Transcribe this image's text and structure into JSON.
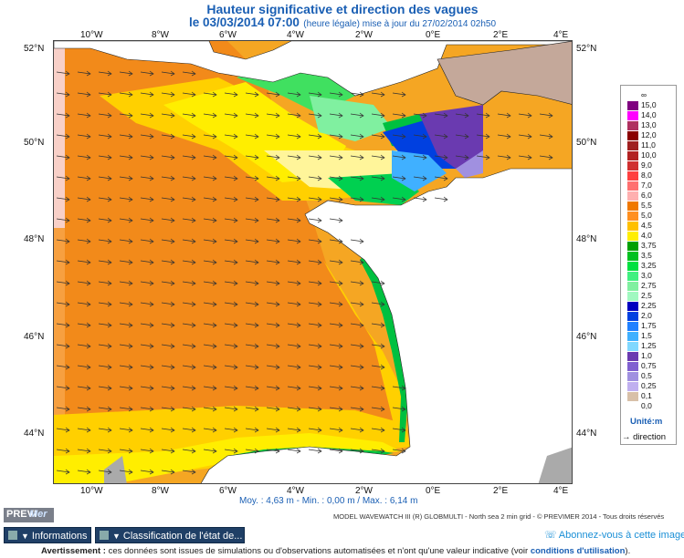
{
  "header": {
    "title": "Hauteur significative et direction des vagues",
    "date": "le 03/03/2014 07:00",
    "date_note": "(heure légale) mise à jour du 27/02/2014 02h50"
  },
  "axes": {
    "lon_labels": [
      "10°W",
      "8°W",
      "6°W",
      "4°W",
      "2°W",
      "0°E",
      "2°E",
      "4°E"
    ],
    "lat_labels": [
      "52°N",
      "50°N",
      "48°N",
      "46°N",
      "44°N"
    ]
  },
  "legend": {
    "values": [
      "∞",
      "15,0",
      "14,0",
      "13,0",
      "12,0",
      "11,0",
      "10,0",
      "9,0",
      "8,0",
      "7,0",
      "6,0",
      "5,5",
      "5,0",
      "4,5",
      "4,0",
      "3,75",
      "3,5",
      "3,25",
      "3,0",
      "2,75",
      "2,5",
      "2,25",
      "2,0",
      "1,75",
      "1,5",
      "1,25",
      "1,0",
      "0,75",
      "0,5",
      "0,25",
      "0,1",
      "0,0"
    ],
    "colors": [
      "#000000",
      "#800080",
      "#ff00ff",
      "#b03060",
      "#8b0000",
      "#a02020",
      "#b22222",
      "#d03030",
      "#ff4040",
      "#ff7070",
      "#ffb0b0",
      "#f07800",
      "#ff9020",
      "#ffc000",
      "#ffee00",
      "#00a000",
      "#00c020",
      "#00e040",
      "#40f080",
      "#80f0a0",
      "#a0f8c0",
      "#0000c0",
      "#0040e0",
      "#2080ff",
      "#40b0ff",
      "#80d8ff",
      "#6a3ab0",
      "#8060d0",
      "#a090e0",
      "#c0b0f0",
      "#d8c0a8",
      "#ffffff"
    ],
    "unit": "Unité:m",
    "direction_label": "direction"
  },
  "stats": "Moy. : 4,63 m  -  Min. : 0,00 m / Max. : 6,14 m",
  "credits": "MODEL WAVEWATCH III (R) GLOBMULTI - North sea 2 min grid - © PREVIMER 2014 - Tous droits réservés",
  "logo": {
    "part1": "PREVI",
    "part2": "Mer"
  },
  "tabs": {
    "informations": "Informations",
    "classification": "Classification de l'état de..."
  },
  "subscribe": "Abonnez-vous à cette image",
  "warning": {
    "prefix": "Avertissement :",
    "text": " ces données sont issues de simulations ou d'observations automatisées et n'ont qu'une valeur indicative (voir ",
    "link": "conditions d'utilisation",
    "suffix": ")."
  }
}
